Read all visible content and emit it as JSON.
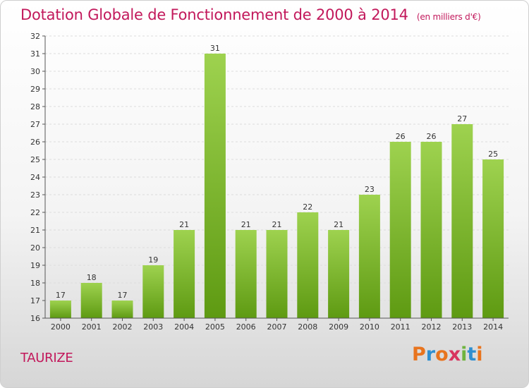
{
  "header": {
    "title": "Dotation Globale de Fonctionnement de 2000 à 2014",
    "subtitle": "(en milliers d'€)"
  },
  "footer": {
    "commune": "TAURIZE",
    "logo": "Proxiti"
  },
  "colors": {
    "title": "#c2185b",
    "bar_top": "#9ed24f",
    "bar_bottom": "#5e9a12",
    "axis": "#555555",
    "grid": "#dcdcdc"
  },
  "chart_data": {
    "type": "bar",
    "title": "Dotation Globale de Fonctionnement de 2000 à 2014",
    "subtitle": "(en milliers d'€)",
    "xlabel": "",
    "ylabel": "",
    "categories": [
      "2000",
      "2001",
      "2002",
      "2003",
      "2004",
      "2005",
      "2006",
      "2007",
      "2008",
      "2009",
      "2010",
      "2011",
      "2012",
      "2013",
      "2014"
    ],
    "values": [
      17,
      18,
      17,
      19,
      21,
      31,
      21,
      21,
      22,
      21,
      23,
      26,
      26,
      27,
      25
    ],
    "ylim": [
      16,
      32
    ],
    "yticks": [
      16,
      17,
      18,
      19,
      20,
      21,
      22,
      23,
      24,
      25,
      26,
      27,
      28,
      29,
      30,
      31,
      32
    ],
    "grid": true,
    "data_labels": true
  }
}
